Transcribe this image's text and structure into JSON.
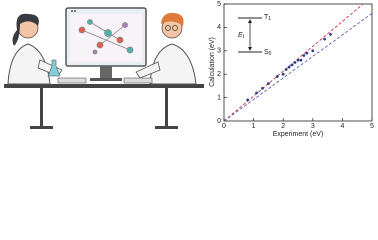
{
  "chart_data": {
    "type": "scatter",
    "x_label": "Experiment (eV)",
    "y_label": "Calculation (eV)",
    "xlim": [
      0,
      5
    ],
    "ylim": [
      0,
      5
    ],
    "xticks": [
      0,
      1,
      2,
      3,
      4,
      5
    ],
    "yticks": [
      0,
      1,
      2,
      3,
      4,
      5
    ],
    "series": [
      {
        "color": "#2f3f86",
        "x": [
          0.8,
          1.1,
          1.3,
          1.5,
          1.8,
          2.0,
          2.1,
          2.2,
          2.3,
          2.4,
          2.5,
          2.6,
          2.7,
          2.8,
          3.0,
          3.4,
          3.6
        ],
        "values": [
          0.9,
          1.2,
          1.4,
          1.6,
          1.9,
          2.0,
          2.2,
          2.3,
          2.4,
          2.5,
          2.6,
          2.6,
          2.8,
          2.9,
          3.0,
          3.5,
          3.7
        ]
      }
    ],
    "lines": [
      {
        "color": "#d9304a",
        "x": [
          0,
          4.7
        ],
        "values": [
          0,
          5
        ]
      },
      {
        "color": "#5b5fb0",
        "x": [
          0,
          5
        ],
        "values": [
          0,
          4.6
        ]
      }
    ],
    "inset": {
      "upper": {
        "text": "T",
        "sub": "1"
      },
      "gap": {
        "text": "E",
        "sub": "t"
      },
      "lower": {
        "text": "S",
        "sub": "0"
      }
    }
  }
}
